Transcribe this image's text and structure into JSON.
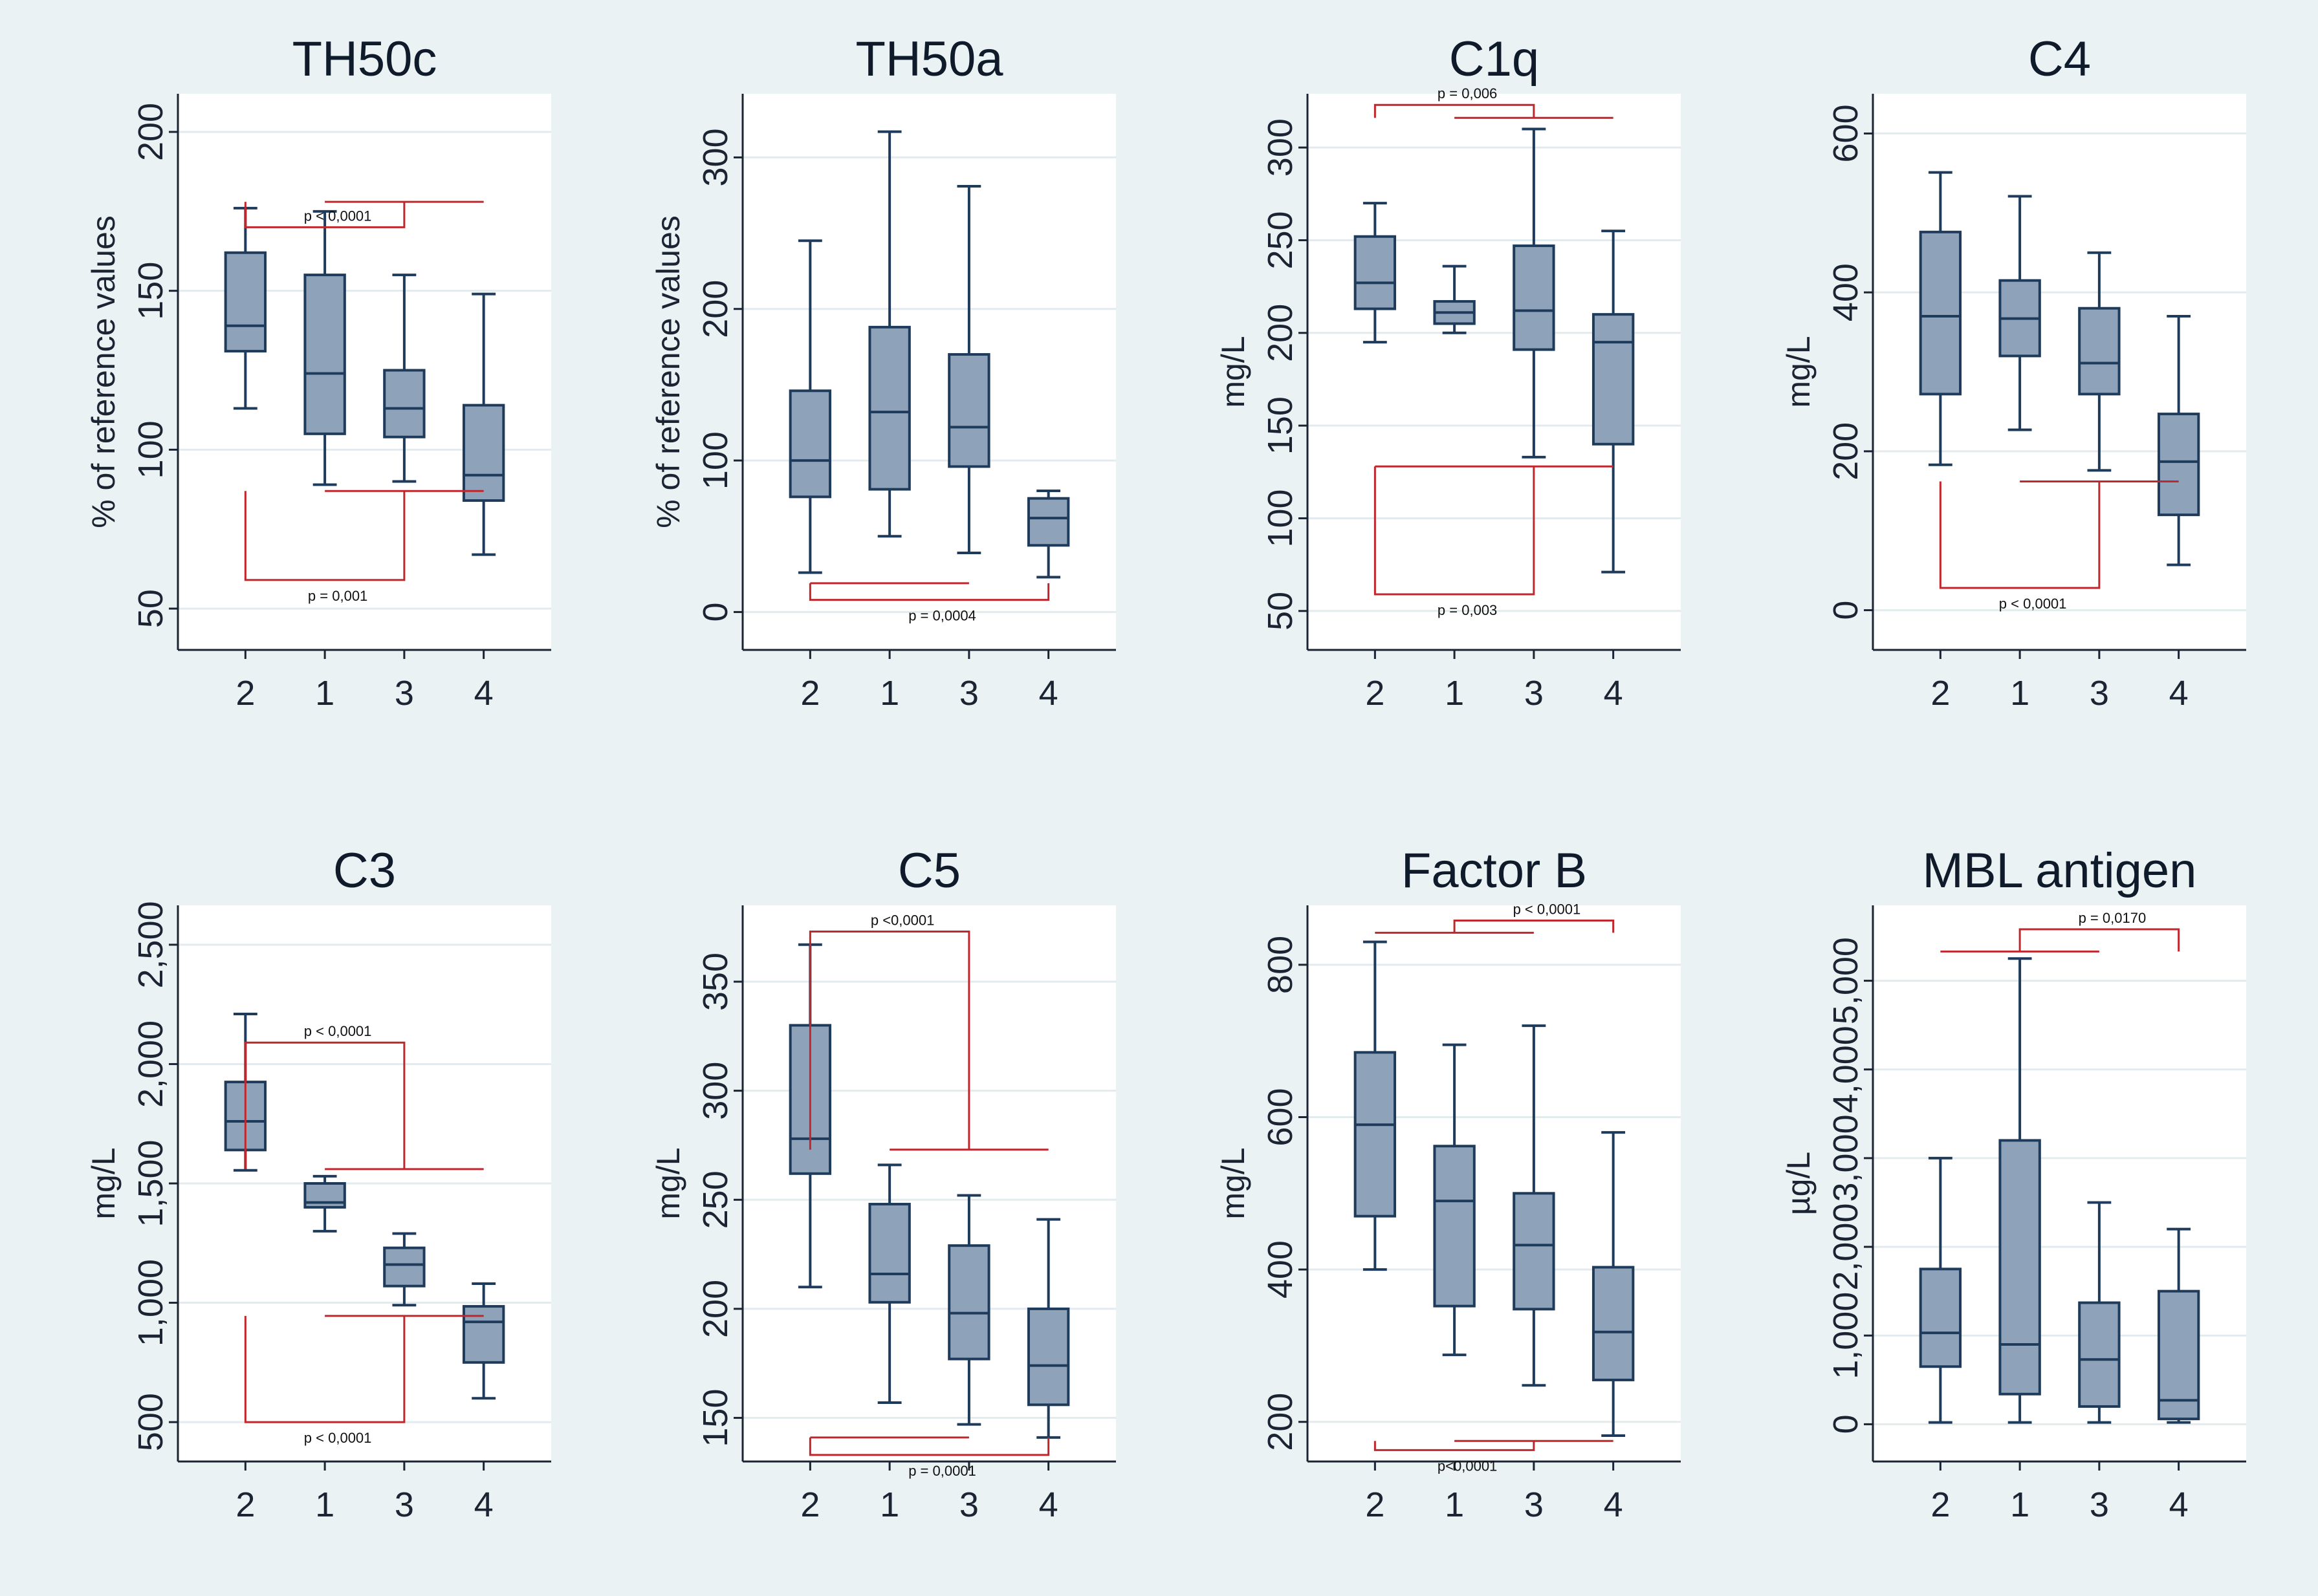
{
  "colors": {
    "background": "#eaf2f3",
    "plot_background": "#ffffff",
    "box_fill": "#8ea3b9",
    "box_stroke": "#1f3b5c",
    "grid": "#e3ebee",
    "significance": "#c0272d"
  },
  "chart_data": [
    {
      "type": "box",
      "title": "TH50c",
      "ylabel": "% of reference values",
      "ylim": [
        37,
        212
      ],
      "yticks": [
        50,
        100,
        150,
        200
      ],
      "ytick_labels": [
        "50",
        "100",
        "150",
        "200"
      ],
      "categories": [
        "2",
        "1",
        "3",
        "4"
      ],
      "boxes": [
        {
          "min": 113,
          "q1": 131,
          "median": 139,
          "q3": 162,
          "max": 176
        },
        {
          "min": 89,
          "q1": 105,
          "median": 124,
          "q3": 155,
          "max": 175
        },
        {
          "min": 90,
          "q1": 104,
          "median": 113,
          "q3": 125,
          "max": 155
        },
        {
          "min": 67,
          "q1": 84,
          "median": 92,
          "q3": 114,
          "max": 149
        }
      ],
      "annotations": [
        {
          "label": "p < 0,0001",
          "side": "top",
          "level": 170,
          "from": [
            0
          ],
          "to": [
            2
          ],
          "inner": 178,
          "to_end": [
            1,
            3
          ]
        },
        {
          "label": "p = 0,001",
          "side": "bottom",
          "level": 59,
          "from": [
            0
          ],
          "to": [
            2
          ],
          "inner": 87,
          "to_end": [
            1,
            3
          ]
        }
      ]
    },
    {
      "type": "box",
      "title": "TH50a",
      "ylabel": "% of reference values",
      "ylim": [
        -25,
        342
      ],
      "yticks": [
        0,
        100,
        200,
        300
      ],
      "ytick_labels": [
        "0",
        "100",
        "200",
        "300"
      ],
      "categories": [
        "2",
        "1",
        "3",
        "4"
      ],
      "boxes": [
        {
          "min": 26,
          "q1": 76,
          "median": 100,
          "q3": 146,
          "max": 245
        },
        {
          "min": 50,
          "q1": 81,
          "median": 132,
          "q3": 188,
          "max": 317
        },
        {
          "min": 39,
          "q1": 96,
          "median": 122,
          "q3": 170,
          "max": 281
        },
        {
          "min": 23,
          "q1": 44,
          "median": 62,
          "q3": 75,
          "max": 80
        }
      ],
      "annotations": [
        {
          "label": "p = 0,0004",
          "side": "bottom",
          "level": 8,
          "from": [
            0
          ],
          "to": [
            3
          ],
          "inner": 19,
          "to_end": [
            0,
            2
          ]
        }
      ]
    },
    {
      "type": "box",
      "title": "C1q",
      "ylabel": "mg/L",
      "ylim": [
        29,
        329
      ],
      "yticks": [
        50,
        100,
        150,
        200,
        250,
        300
      ],
      "ytick_labels": [
        "50",
        "100",
        "150",
        "200",
        "250",
        "300"
      ],
      "categories": [
        "2",
        "1",
        "3",
        "4"
      ],
      "boxes": [
        {
          "min": 195,
          "q1": 213,
          "median": 227,
          "q3": 252,
          "max": 270
        },
        {
          "min": 200,
          "q1": 205,
          "median": 211,
          "q3": 217,
          "max": 236
        },
        {
          "min": 133,
          "q1": 191,
          "median": 212,
          "q3": 247,
          "max": 310
        },
        {
          "min": 71,
          "q1": 140,
          "median": 195,
          "q3": 210,
          "max": 255
        }
      ],
      "annotations": [
        {
          "label": "p = 0,006",
          "side": "top",
          "level": 323,
          "from": [
            0
          ],
          "to": [
            2
          ],
          "inner": 316,
          "to_end": [
            1,
            3
          ]
        },
        {
          "label": "p = 0,003",
          "side": "bottom",
          "level": 59,
          "from": [
            0
          ],
          "to": [
            2
          ],
          "inner": 128,
          "to_end": [
            0,
            3
          ]
        }
      ]
    },
    {
      "type": "box",
      "title": "C4",
      "ylabel": "mg/L",
      "ylim": [
        -50,
        650
      ],
      "yticks": [
        0,
        200,
        400,
        600
      ],
      "ytick_labels": [
        "0",
        "200",
        "400",
        "600"
      ],
      "categories": [
        "2",
        "1",
        "3",
        "4"
      ],
      "boxes": [
        {
          "min": 183,
          "q1": 272,
          "median": 370,
          "q3": 476,
          "max": 551
        },
        {
          "min": 227,
          "q1": 320,
          "median": 367,
          "q3": 415,
          "max": 521
        },
        {
          "min": 176,
          "q1": 272,
          "median": 311,
          "q3": 380,
          "max": 450
        },
        {
          "min": 57,
          "q1": 120,
          "median": 187,
          "q3": 247,
          "max": 370
        }
      ],
      "annotations": [
        {
          "label": "p < 0,0001",
          "side": "bottom",
          "level": 28,
          "from": [
            0
          ],
          "to": [
            2
          ],
          "inner": 162,
          "to_end": [
            1,
            3
          ]
        }
      ]
    },
    {
      "type": "box",
      "title": "C3",
      "ylabel": "mg/L",
      "ylim": [
        335,
        2665
      ],
      "yticks": [
        500,
        1000,
        1500,
        2000,
        2500
      ],
      "ytick_labels": [
        "500",
        "1,000",
        "1,500",
        "2,000",
        "2,500"
      ],
      "categories": [
        "2",
        "1",
        "3",
        "4"
      ],
      "boxes": [
        {
          "min": 1555,
          "q1": 1640,
          "median": 1760,
          "q3": 1925,
          "max": 2210
        },
        {
          "min": 1300,
          "q1": 1400,
          "median": 1420,
          "q3": 1500,
          "max": 1530
        },
        {
          "min": 990,
          "q1": 1070,
          "median": 1160,
          "q3": 1230,
          "max": 1290
        },
        {
          "min": 600,
          "q1": 750,
          "median": 920,
          "q3": 985,
          "max": 1080
        }
      ],
      "annotations": [
        {
          "label": "p < 0,0001",
          "side": "top",
          "level": 2090,
          "from": [
            0
          ],
          "to": [
            2
          ],
          "inner": 1560,
          "to_end": [
            1,
            3
          ]
        },
        {
          "label": "p < 0,0001",
          "side": "bottom",
          "level": 500,
          "from": [
            0
          ],
          "to": [
            2
          ],
          "inner": 945,
          "to_end": [
            1,
            3
          ]
        }
      ]
    },
    {
      "type": "box",
      "title": "C5",
      "ylabel": "mg/L",
      "ylim": [
        130,
        385
      ],
      "yticks": [
        150,
        200,
        250,
        300,
        350
      ],
      "ytick_labels": [
        "150",
        "200",
        "250",
        "300",
        "350"
      ],
      "categories": [
        "2",
        "1",
        "3",
        "4"
      ],
      "boxes": [
        {
          "min": 210,
          "q1": 262,
          "median": 278,
          "q3": 330,
          "max": 367
        },
        {
          "min": 157,
          "q1": 203,
          "median": 216,
          "q3": 248,
          "max": 266
        },
        {
          "min": 147,
          "q1": 177,
          "median": 198,
          "q3": 229,
          "max": 252
        },
        {
          "min": 141,
          "q1": 156,
          "median": 174,
          "q3": 200,
          "max": 241
        }
      ],
      "annotations": [
        {
          "label": "p <0,0001",
          "side": "top",
          "level": 373,
          "from": [
            0
          ],
          "to": [
            2
          ],
          "inner": 273,
          "to_end": [
            1,
            3
          ]
        },
        {
          "label": "p = 0,0001",
          "side": "bottom",
          "level": 133,
          "from": [
            0
          ],
          "to": [
            3
          ],
          "inner": 141,
          "to_end": [
            0,
            2
          ]
        }
      ]
    },
    {
      "type": "box",
      "title": "Factor B",
      "ylabel": "mg/L",
      "ylim": [
        148,
        878
      ],
      "yticks": [
        200,
        400,
        600,
        800
      ],
      "ytick_labels": [
        "200",
        "400",
        "600",
        "800"
      ],
      "categories": [
        "2",
        "1",
        "3",
        "4"
      ],
      "boxes": [
        {
          "min": 400,
          "q1": 470,
          "median": 590,
          "q3": 685,
          "max": 830
        },
        {
          "min": 288,
          "q1": 352,
          "median": 490,
          "q3": 562,
          "max": 695
        },
        {
          "min": 248,
          "q1": 348,
          "median": 432,
          "q3": 500,
          "max": 720
        },
        {
          "min": 182,
          "q1": 255,
          "median": 318,
          "q3": 403,
          "max": 580
        }
      ],
      "annotations": [
        {
          "label": "p < 0,0001",
          "side": "top",
          "level": 858,
          "from": [
            1
          ],
          "to": [
            3
          ],
          "inner": 842,
          "to_end": [
            0,
            2
          ]
        },
        {
          "label": "p<0,0001",
          "side": "bottom",
          "level": 163,
          "from": [
            0
          ],
          "to": [
            2
          ],
          "inner": 175,
          "to_end": [
            1,
            3
          ]
        }
      ]
    },
    {
      "type": "box",
      "title": "MBL antigen",
      "ylabel": "µg/L",
      "ylim": [
        -420,
        5850
      ],
      "yticks": [
        0,
        1000,
        2000,
        3000,
        4000,
        5000
      ],
      "ytick_labels": [
        "0",
        "1,000",
        "2,000",
        "3,000",
        "4,000",
        "5,000"
      ],
      "categories": [
        "2",
        "1",
        "3",
        "4"
      ],
      "boxes": [
        {
          "min": 20,
          "q1": 650,
          "median": 1030,
          "q3": 1750,
          "max": 3000
        },
        {
          "min": 20,
          "q1": 340,
          "median": 900,
          "q3": 3200,
          "max": 5250
        },
        {
          "min": 20,
          "q1": 200,
          "median": 730,
          "q3": 1370,
          "max": 2500
        },
        {
          "min": 20,
          "q1": 60,
          "median": 270,
          "q3": 1500,
          "max": 2200
        }
      ],
      "annotations": [
        {
          "label": "p = 0,0170",
          "side": "top",
          "level": 5580,
          "from": [
            1
          ],
          "to": [
            3
          ],
          "inner": 5330,
          "to_end": [
            0,
            2
          ]
        }
      ]
    }
  ]
}
